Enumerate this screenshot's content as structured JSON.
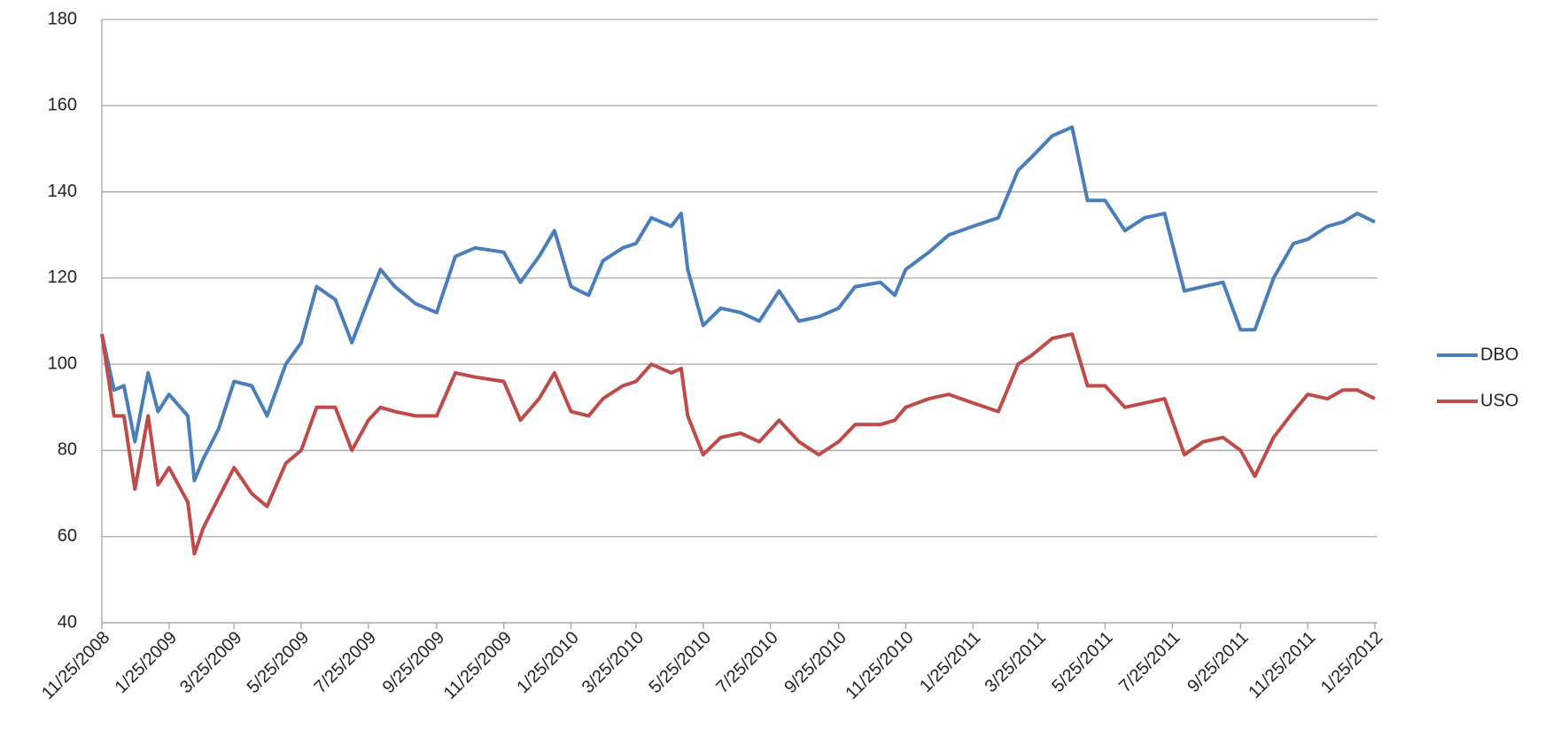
{
  "chart_data": {
    "type": "line",
    "x": [
      "11/25/2008",
      "12/6/2008",
      "12/15/2008",
      "12/25/2008",
      "1/6/2009",
      "1/15/2009",
      "1/25/2009",
      "2/11/2009",
      "2/17/2009",
      "2/25/2009",
      "3/11/2009",
      "3/25/2009",
      "4/10/2009",
      "4/24/2009",
      "5/11/2009",
      "5/25/2009",
      "6/8/2009",
      "6/25/2009",
      "7/10/2009",
      "7/25/2009",
      "8/5/2009",
      "8/18/2009",
      "9/6/2009",
      "9/25/2009",
      "10/12/2009",
      "10/30/2009",
      "11/25/2009",
      "12/10/2009",
      "12/27/2009",
      "1/10/2010",
      "1/25/2010",
      "2/10/2010",
      "2/23/2010",
      "3/13/2010",
      "3/25/2010",
      "4/8/2010",
      "4/26/2010",
      "5/5/2010",
      "5/11/2010",
      "5/25/2010",
      "6/10/2010",
      "6/28/2010",
      "7/15/2010",
      "8/2/2010",
      "8/20/2010",
      "9/7/2010",
      "9/25/2010",
      "10/10/2010",
      "11/2/2010",
      "11/15/2010",
      "11/25/2010",
      "12/16/2010",
      "1/3/2011",
      "1/25/2011",
      "2/17/2011",
      "3/7/2011",
      "3/19/2011",
      "4/7/2011",
      "4/25/2011",
      "5/9/2011",
      "5/25/2011",
      "6/12/2011",
      "6/30/2011",
      "7/18/2011",
      "8/5/2011",
      "8/22/2011",
      "9/9/2011",
      "9/25/2011",
      "10/8/2011",
      "10/25/2011",
      "11/12/2011",
      "11/25/2011",
      "12/13/2011",
      "12/27/2011",
      "1/9/2012",
      "1/25/2012"
    ],
    "series": [
      {
        "name": "DBO",
        "color": "#4a7ebb",
        "values": [
          107,
          94,
          95,
          82,
          98,
          89,
          93,
          88,
          73,
          78,
          85,
          96,
          95,
          88,
          100,
          105,
          118,
          115,
          105,
          115,
          122,
          118,
          114,
          112,
          125,
          127,
          126,
          119,
          125,
          131,
          118,
          116,
          124,
          127,
          128,
          134,
          132,
          135,
          122,
          109,
          113,
          112,
          110,
          117,
          110,
          111,
          113,
          118,
          119,
          116,
          122,
          126,
          130,
          132,
          134,
          145,
          148,
          153,
          155,
          138,
          138,
          131,
          134,
          135,
          117,
          118,
          119,
          108,
          108,
          120,
          128,
          129,
          132,
          133,
          135,
          133
        ]
      },
      {
        "name": "USO",
        "color": "#be4b48",
        "values": [
          107,
          88,
          88,
          71,
          88,
          72,
          76,
          68,
          56,
          62,
          69,
          76,
          70,
          67,
          77,
          80,
          90,
          90,
          80,
          87,
          90,
          89,
          88,
          88,
          98,
          97,
          96,
          87,
          92,
          98,
          89,
          88,
          92,
          95,
          96,
          100,
          98,
          99,
          88,
          79,
          83,
          84,
          82,
          87,
          82,
          79,
          82,
          86,
          86,
          87,
          90,
          92,
          93,
          91,
          89,
          100,
          102,
          106,
          107,
          95,
          95,
          90,
          91,
          92,
          79,
          82,
          83,
          80,
          74,
          83,
          89,
          93,
          92,
          94,
          94,
          92
        ]
      }
    ],
    "xlim": [
      "11/25/2008",
      "1/25/2012"
    ],
    "xticks": [
      "11/25/2008",
      "1/25/2009",
      "3/25/2009",
      "5/25/2009",
      "7/25/2009",
      "9/25/2009",
      "11/25/2009",
      "1/25/2010",
      "3/25/2010",
      "5/25/2010",
      "7/25/2010",
      "9/25/2010",
      "11/25/2010",
      "1/25/2011",
      "3/25/2011",
      "5/25/2011",
      "7/25/2011",
      "9/25/2011",
      "11/25/2011",
      "1/25/2012"
    ],
    "ylim": [
      40,
      180
    ],
    "yticks": [
      40,
      60,
      80,
      100,
      120,
      140,
      160,
      180
    ],
    "grid": true,
    "legend": "right"
  }
}
